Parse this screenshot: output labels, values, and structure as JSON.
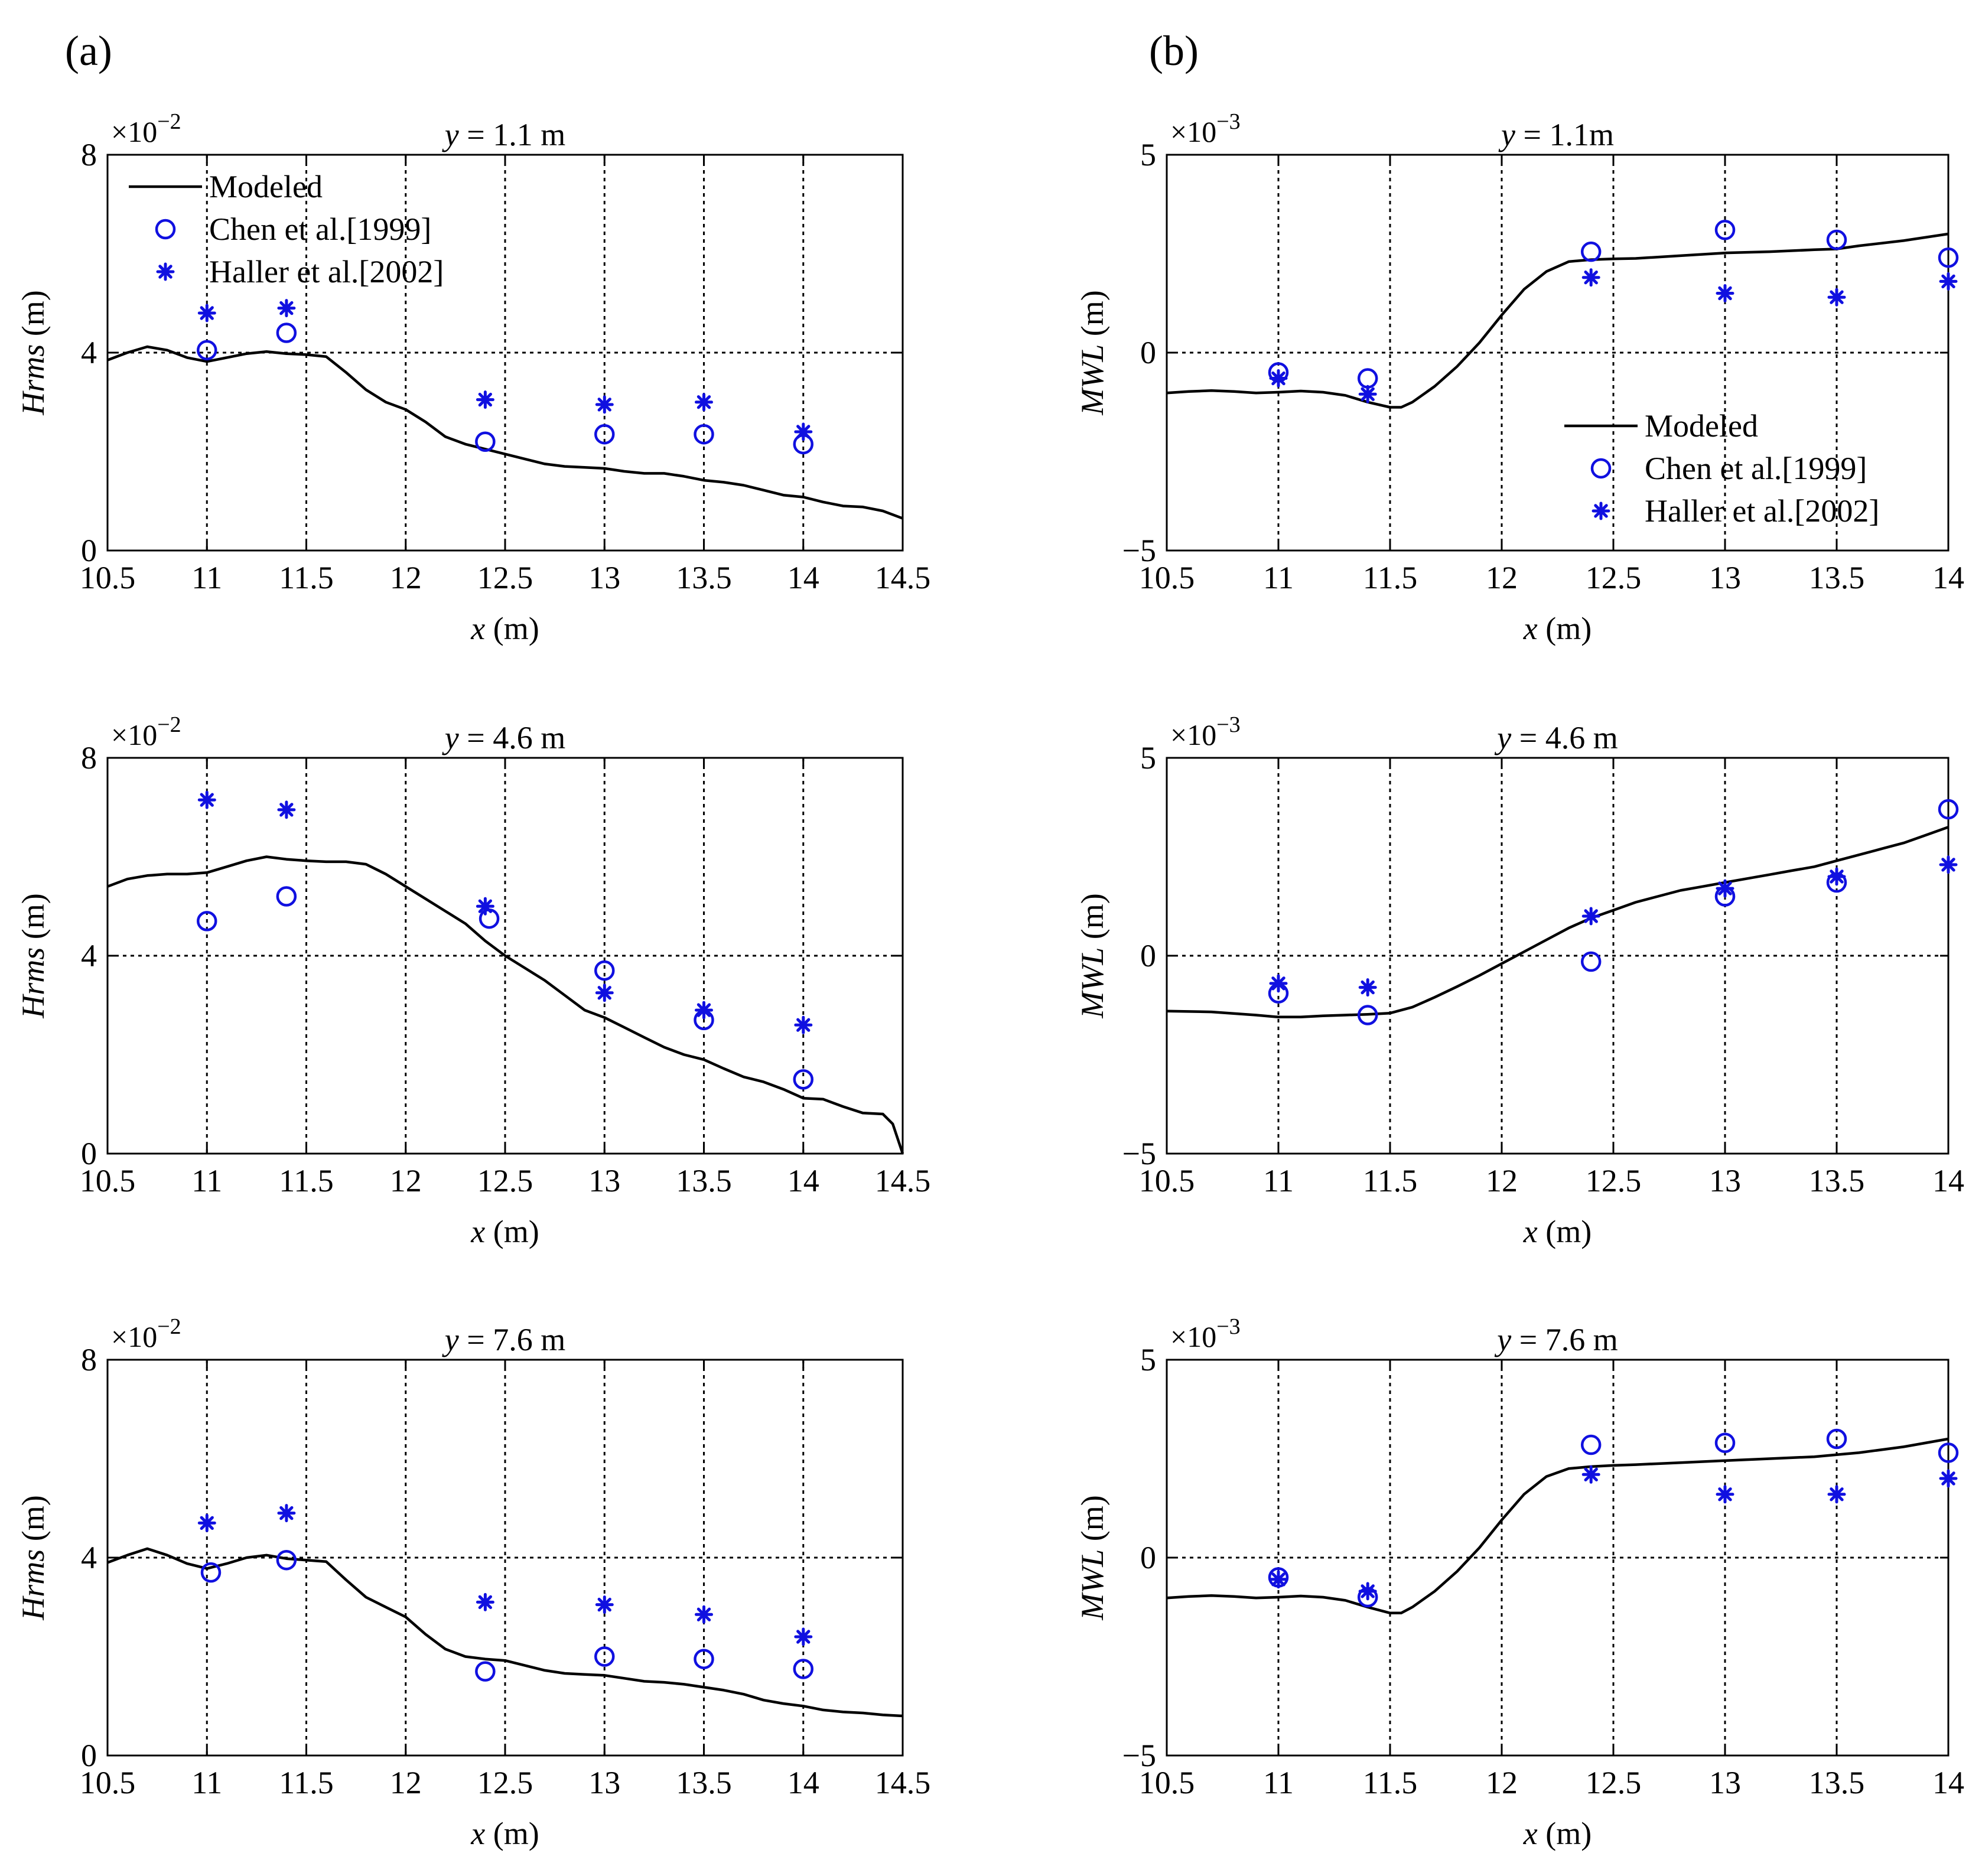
{
  "figure": {
    "panel_a": "(a)",
    "panel_b": "(b)",
    "x_unit": "(m)",
    "x_var": "x",
    "legend": {
      "modeled": "Modeled",
      "chen": "Chen et al.[1999]",
      "haller": "Haller et al.[2002]"
    },
    "colors": {
      "model": "#000000",
      "observed": "#1010e0"
    }
  },
  "chart_data": [
    {
      "id": "hrms-y1.1",
      "column": "a",
      "row": 0,
      "type": "line",
      "title_var": "y",
      "title_rest": "= 1.1 m",
      "ylabel_var": "Hrms",
      "ylabel_unit": "(m)",
      "scale_exp": "-2",
      "xlim": [
        10.5,
        14.5
      ],
      "ylim": [
        0,
        8
      ],
      "xticks": [
        10.5,
        11,
        11.5,
        12,
        12.5,
        13,
        13.5,
        14,
        14.5
      ],
      "xtick_labels": [
        "10.5",
        "11",
        "11.5",
        "12",
        "12.5",
        "13",
        "13.5",
        "14",
        "14.5"
      ],
      "yticks": [
        0,
        4,
        8
      ],
      "ytick_labels": [
        "0",
        "4",
        "8"
      ],
      "grid_x": [
        11,
        11.5,
        12,
        12.5,
        13,
        13.5,
        14
      ],
      "grid_y": [
        4
      ],
      "legend_position": "top-left",
      "series": [
        {
          "name": "Modeled",
          "style": "line",
          "x": [
            10.5,
            10.6,
            10.7,
            10.8,
            10.9,
            11.0,
            11.1,
            11.2,
            11.3,
            11.4,
            11.5,
            11.6,
            11.7,
            11.8,
            11.9,
            12.0,
            12.1,
            12.2,
            12.3,
            12.4,
            12.5,
            12.6,
            12.7,
            12.8,
            12.9,
            13.0,
            13.1,
            13.2,
            13.3,
            13.4,
            13.5,
            13.6,
            13.7,
            13.8,
            13.9,
            14.0,
            14.1,
            14.2,
            14.3,
            14.4,
            14.5
          ],
          "y": [
            3.85,
            4.0,
            4.12,
            4.05,
            3.9,
            3.82,
            3.9,
            3.98,
            4.02,
            3.98,
            3.96,
            3.92,
            3.6,
            3.25,
            3.0,
            2.85,
            2.6,
            2.3,
            2.15,
            2.05,
            1.95,
            1.85,
            1.75,
            1.7,
            1.68,
            1.66,
            1.6,
            1.56,
            1.56,
            1.5,
            1.42,
            1.38,
            1.32,
            1.22,
            1.12,
            1.08,
            0.98,
            0.9,
            0.88,
            0.8,
            0.65
          ]
        },
        {
          "name": "Chen et al.[1999]",
          "style": "circle",
          "x": [
            11.0,
            11.4,
            12.4,
            13.0,
            13.5,
            14.0
          ],
          "y": [
            4.05,
            4.4,
            2.2,
            2.35,
            2.35,
            2.15
          ]
        },
        {
          "name": "Haller et al.[2002]",
          "style": "star",
          "x": [
            11.0,
            11.4,
            12.4,
            13.0,
            13.5,
            14.0
          ],
          "y": [
            4.8,
            4.9,
            3.05,
            2.95,
            3.0,
            2.4
          ]
        }
      ]
    },
    {
      "id": "hrms-y4.6",
      "column": "a",
      "row": 1,
      "type": "line",
      "title_var": "y",
      "title_rest": "= 4.6 m",
      "ylabel_var": "Hrms",
      "ylabel_unit": "(m)",
      "scale_exp": "-2",
      "xlim": [
        10.5,
        14.5
      ],
      "ylim": [
        0,
        8
      ],
      "xticks": [
        10.5,
        11,
        11.5,
        12,
        12.5,
        13,
        13.5,
        14,
        14.5
      ],
      "xtick_labels": [
        "10.5",
        "11",
        "11.5",
        "12",
        "12.5",
        "13",
        "13.5",
        "14",
        "14.5"
      ],
      "yticks": [
        0,
        4,
        8
      ],
      "ytick_labels": [
        "0",
        "4",
        "8"
      ],
      "grid_x": [
        11,
        11.5,
        12,
        12.5,
        13,
        13.5,
        14
      ],
      "grid_y": [
        4
      ],
      "series": [
        {
          "name": "Modeled",
          "style": "line",
          "x": [
            10.5,
            10.6,
            10.7,
            10.8,
            10.9,
            11.0,
            11.1,
            11.2,
            11.3,
            11.4,
            11.5,
            11.6,
            11.7,
            11.8,
            11.9,
            12.0,
            12.1,
            12.2,
            12.3,
            12.4,
            12.5,
            12.6,
            12.7,
            12.8,
            12.9,
            13.0,
            13.1,
            13.2,
            13.3,
            13.4,
            13.5,
            13.6,
            13.7,
            13.8,
            13.9,
            14.0,
            14.1,
            14.2,
            14.3,
            14.4,
            14.45,
            14.5
          ],
          "y": [
            5.4,
            5.55,
            5.62,
            5.65,
            5.65,
            5.68,
            5.8,
            5.92,
            6.0,
            5.95,
            5.92,
            5.9,
            5.9,
            5.85,
            5.65,
            5.4,
            5.15,
            4.9,
            4.65,
            4.3,
            4.0,
            3.75,
            3.5,
            3.2,
            2.9,
            2.75,
            2.55,
            2.35,
            2.15,
            2.0,
            1.9,
            1.72,
            1.55,
            1.45,
            1.3,
            1.12,
            1.1,
            0.95,
            0.82,
            0.8,
            0.6,
            0.0
          ]
        },
        {
          "name": "Chen et al.[1999]",
          "style": "circle",
          "x": [
            11.0,
            11.4,
            12.42,
            13.0,
            13.5,
            14.0
          ],
          "y": [
            4.7,
            5.2,
            4.75,
            3.7,
            2.7,
            1.5
          ]
        },
        {
          "name": "Haller et al.[2002]",
          "style": "star",
          "x": [
            11.0,
            11.4,
            12.4,
            13.0,
            13.5,
            14.0
          ],
          "y": [
            7.15,
            6.95,
            5.0,
            3.25,
            2.9,
            2.6
          ]
        }
      ]
    },
    {
      "id": "hrms-y7.6",
      "column": "a",
      "row": 2,
      "type": "line",
      "title_var": "y",
      "title_rest": "= 7.6 m",
      "ylabel_var": "Hrms",
      "ylabel_unit": "(m)",
      "scale_exp": "-2",
      "xlim": [
        10.5,
        14.5
      ],
      "ylim": [
        0,
        8
      ],
      "xticks": [
        10.5,
        11,
        11.5,
        12,
        12.5,
        13,
        13.5,
        14,
        14.5
      ],
      "xtick_labels": [
        "10.5",
        "11",
        "11.5",
        "12",
        "12.5",
        "13",
        "13.5",
        "14",
        "14.5"
      ],
      "yticks": [
        0,
        4,
        8
      ],
      "ytick_labels": [
        "0",
        "4",
        "8"
      ],
      "grid_x": [
        11,
        11.5,
        12,
        12.5,
        13,
        13.5,
        14
      ],
      "grid_y": [
        4
      ],
      "series": [
        {
          "name": "Modeled",
          "style": "line",
          "x": [
            10.5,
            10.6,
            10.7,
            10.8,
            10.9,
            11.0,
            11.1,
            11.2,
            11.3,
            11.4,
            11.5,
            11.6,
            11.7,
            11.8,
            11.9,
            12.0,
            12.1,
            12.2,
            12.3,
            12.4,
            12.5,
            12.6,
            12.7,
            12.8,
            12.9,
            13.0,
            13.1,
            13.2,
            13.3,
            13.4,
            13.5,
            13.6,
            13.7,
            13.8,
            13.9,
            14.0,
            14.1,
            14.2,
            14.3,
            14.4,
            14.5
          ],
          "y": [
            3.9,
            4.05,
            4.18,
            4.05,
            3.88,
            3.78,
            3.88,
            4.0,
            4.05,
            3.98,
            3.95,
            3.92,
            3.55,
            3.2,
            3.0,
            2.8,
            2.45,
            2.15,
            2.0,
            1.95,
            1.92,
            1.82,
            1.72,
            1.66,
            1.64,
            1.62,
            1.56,
            1.5,
            1.48,
            1.44,
            1.38,
            1.32,
            1.24,
            1.12,
            1.05,
            1.0,
            0.92,
            0.88,
            0.86,
            0.82,
            0.8
          ]
        },
        {
          "name": "Chen et al.[1999]",
          "style": "circle",
          "x": [
            11.02,
            11.4,
            12.4,
            13.0,
            13.5,
            14.0
          ],
          "y": [
            3.7,
            3.95,
            1.7,
            2.0,
            1.95,
            1.75
          ]
        },
        {
          "name": "Haller et al.[2002]",
          "style": "star",
          "x": [
            11.0,
            11.4,
            12.4,
            13.0,
            13.5,
            14.0
          ],
          "y": [
            4.7,
            4.9,
            3.1,
            3.05,
            2.85,
            2.4
          ]
        }
      ]
    },
    {
      "id": "mwl-y1.1",
      "column": "b",
      "row": 0,
      "type": "line",
      "title_var": "y",
      "title_rest": "= 1.1m",
      "ylabel_var": "MWL",
      "ylabel_unit": "(m)",
      "scale_exp": "-3",
      "xlim": [
        10.5,
        14
      ],
      "ylim": [
        -5,
        5
      ],
      "xticks": [
        10.5,
        11,
        11.5,
        12,
        12.5,
        13,
        13.5,
        14
      ],
      "xtick_labels": [
        "10.5",
        "11",
        "11.5",
        "12",
        "12.5",
        "13",
        "13.5",
        "14"
      ],
      "yticks": [
        -5,
        0,
        5
      ],
      "ytick_labels": [
        "−5",
        "0",
        "5"
      ],
      "grid_x": [
        11,
        11.5,
        12,
        12.5,
        13,
        13.5
      ],
      "grid_y": [
        0
      ],
      "legend_position": "center-right",
      "series": [
        {
          "name": "Modeled",
          "style": "line",
          "x": [
            10.5,
            10.6,
            10.7,
            10.8,
            10.9,
            11.0,
            11.1,
            11.2,
            11.3,
            11.4,
            11.5,
            11.55,
            11.6,
            11.7,
            11.8,
            11.9,
            12.0,
            12.1,
            12.2,
            12.3,
            12.4,
            12.5,
            12.6,
            12.8,
            13.0,
            13.2,
            13.4,
            13.5,
            13.6,
            13.8,
            14.0
          ],
          "y": [
            -1.02,
            -0.98,
            -0.96,
            -0.98,
            -1.02,
            -1.0,
            -0.97,
            -1.0,
            -1.08,
            -1.25,
            -1.38,
            -1.38,
            -1.25,
            -0.85,
            -0.35,
            0.25,
            0.95,
            1.6,
            2.05,
            2.3,
            2.35,
            2.37,
            2.38,
            2.45,
            2.52,
            2.55,
            2.6,
            2.62,
            2.7,
            2.83,
            3.0
          ]
        },
        {
          "name": "Chen et al.[1999]",
          "style": "circle",
          "x": [
            11.0,
            11.4,
            12.4,
            13.0,
            13.5,
            14.0
          ],
          "y": [
            -0.5,
            -0.65,
            2.55,
            3.1,
            2.85,
            2.4
          ]
        },
        {
          "name": "Haller et al.[2002]",
          "style": "star",
          "x": [
            11.0,
            11.4,
            12.4,
            13.0,
            13.5,
            14.0
          ],
          "y": [
            -0.65,
            -1.05,
            1.9,
            1.5,
            1.4,
            1.8
          ]
        }
      ]
    },
    {
      "id": "mwl-y4.6",
      "column": "b",
      "row": 1,
      "type": "line",
      "title_var": "y",
      "title_rest": "= 4.6 m",
      "ylabel_var": "MWL",
      "ylabel_unit": "(m)",
      "scale_exp": "-3",
      "xlim": [
        10.5,
        14
      ],
      "ylim": [
        -5,
        5
      ],
      "xticks": [
        10.5,
        11,
        11.5,
        12,
        12.5,
        13,
        13.5,
        14
      ],
      "xtick_labels": [
        "10.5",
        "11",
        "11.5",
        "12",
        "12.5",
        "13",
        "13.5",
        "14"
      ],
      "yticks": [
        -5,
        0,
        5
      ],
      "ytick_labels": [
        "−5",
        "0",
        "5"
      ],
      "grid_x": [
        11,
        11.5,
        12,
        12.5,
        13,
        13.5
      ],
      "grid_y": [
        0
      ],
      "series": [
        {
          "name": "Modeled",
          "style": "line",
          "x": [
            10.5,
            10.7,
            10.9,
            11.0,
            11.1,
            11.2,
            11.3,
            11.4,
            11.5,
            11.6,
            11.7,
            11.8,
            11.9,
            12.0,
            12.1,
            12.2,
            12.3,
            12.4,
            12.5,
            12.6,
            12.7,
            12.8,
            12.9,
            13.0,
            13.1,
            13.2,
            13.3,
            13.4,
            13.5,
            13.6,
            13.7,
            13.8,
            13.9,
            14.0
          ],
          "y": [
            -1.4,
            -1.42,
            -1.5,
            -1.55,
            -1.55,
            -1.52,
            -1.5,
            -1.48,
            -1.45,
            -1.3,
            -1.05,
            -0.78,
            -0.5,
            -0.2,
            0.1,
            0.4,
            0.7,
            0.95,
            1.15,
            1.35,
            1.5,
            1.65,
            1.75,
            1.85,
            1.95,
            2.05,
            2.15,
            2.25,
            2.4,
            2.55,
            2.7,
            2.85,
            3.05,
            3.25
          ]
        },
        {
          "name": "Chen et al.[1999]",
          "style": "circle",
          "x": [
            11.0,
            11.4,
            12.4,
            13.0,
            13.5,
            14.0
          ],
          "y": [
            -0.95,
            -1.5,
            -0.15,
            1.5,
            1.85,
            3.7
          ]
        },
        {
          "name": "Haller et al.[2002]",
          "style": "star",
          "x": [
            11.0,
            11.4,
            12.4,
            13.0,
            13.5,
            14.0
          ],
          "y": [
            -0.7,
            -0.8,
            1.0,
            1.7,
            2.0,
            2.3
          ]
        }
      ]
    },
    {
      "id": "mwl-y7.6",
      "column": "b",
      "row": 2,
      "type": "line",
      "title_var": "y",
      "title_rest": "= 7.6 m",
      "ylabel_var": "MWL",
      "ylabel_unit": "(m)",
      "scale_exp": "-3",
      "xlim": [
        10.5,
        14
      ],
      "ylim": [
        -5,
        5
      ],
      "xticks": [
        10.5,
        11,
        11.5,
        12,
        12.5,
        13,
        13.5,
        14
      ],
      "xtick_labels": [
        "10.5",
        "11",
        "11.5",
        "12",
        "12.5",
        "13",
        "13.5",
        "14"
      ],
      "yticks": [
        -5,
        0,
        5
      ],
      "ytick_labels": [
        "−5",
        "0",
        "5"
      ],
      "grid_x": [
        11,
        11.5,
        12,
        12.5,
        13,
        13.5
      ],
      "grid_y": [
        0
      ],
      "series": [
        {
          "name": "Modeled",
          "style": "line",
          "x": [
            10.5,
            10.6,
            10.7,
            10.8,
            10.9,
            11.0,
            11.1,
            11.2,
            11.3,
            11.4,
            11.5,
            11.55,
            11.6,
            11.7,
            11.8,
            11.9,
            12.0,
            12.1,
            12.2,
            12.3,
            12.4,
            12.5,
            12.6,
            12.8,
            13.0,
            13.2,
            13.4,
            13.5,
            13.6,
            13.8,
            14.0
          ],
          "y": [
            -1.02,
            -0.98,
            -0.96,
            -0.98,
            -1.02,
            -1.0,
            -0.97,
            -1.0,
            -1.08,
            -1.25,
            -1.4,
            -1.4,
            -1.25,
            -0.85,
            -0.35,
            0.25,
            0.95,
            1.6,
            2.05,
            2.25,
            2.3,
            2.33,
            2.35,
            2.4,
            2.45,
            2.5,
            2.55,
            2.6,
            2.65,
            2.8,
            3.0
          ]
        },
        {
          "name": "Chen et al.[1999]",
          "style": "circle",
          "x": [
            11.0,
            11.4,
            12.4,
            13.0,
            13.5,
            14.0
          ],
          "y": [
            -0.5,
            -1.0,
            2.85,
            2.9,
            3.0,
            2.65
          ]
        },
        {
          "name": "Haller et al.[2002]",
          "style": "star",
          "x": [
            11.0,
            11.4,
            12.4,
            13.0,
            13.5,
            14.0
          ],
          "y": [
            -0.55,
            -0.85,
            2.1,
            1.6,
            1.6,
            2.0
          ]
        }
      ]
    }
  ]
}
